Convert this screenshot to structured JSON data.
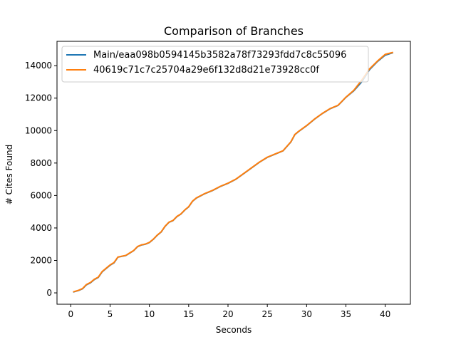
{
  "chart_data": {
    "type": "line",
    "title": "Comparison of Branches",
    "xlabel": "Seconds",
    "ylabel": "# Cites Found",
    "xlim": [
      -1.75,
      43.2
    ],
    "ylim": [
      -700,
      15500
    ],
    "xticks": [
      0,
      5,
      10,
      15,
      20,
      25,
      30,
      35,
      40
    ],
    "yticks": [
      0,
      2000,
      4000,
      6000,
      8000,
      10000,
      12000,
      14000
    ],
    "grid": false,
    "legend_position": "top-left",
    "series": [
      {
        "name": "Main/eaa098b0594145b3582a78f73293fdd7c8c55096",
        "color": "#1f77b4",
        "x": [
          0.3,
          1.0,
          1.5,
          2.0,
          2.5,
          3.0,
          3.5,
          4.0,
          4.5,
          5.0,
          5.5,
          6.0,
          6.5,
          7.0,
          7.5,
          8.0,
          8.5,
          9.0,
          9.5,
          10.0,
          10.5,
          11.0,
          11.5,
          12.0,
          12.5,
          13.0,
          13.5,
          14.0,
          14.5,
          15.0,
          15.5,
          16.0,
          17.0,
          18.0,
          19.0,
          20.0,
          21.0,
          22.0,
          23.0,
          24.0,
          25.0,
          26.0,
          27.0,
          28.0,
          28.5,
          29.0,
          30.0,
          31.0,
          32.0,
          33.0,
          34.0,
          34.5,
          35.0,
          36.0,
          37.0,
          38.0,
          39.0,
          40.0,
          41.0
        ],
        "y": [
          50,
          150,
          250,
          500,
          620,
          820,
          950,
          1300,
          1500,
          1700,
          1850,
          2200,
          2250,
          2300,
          2450,
          2600,
          2850,
          2950,
          3000,
          3100,
          3300,
          3550,
          3750,
          4100,
          4350,
          4450,
          4700,
          4850,
          5100,
          5300,
          5650,
          5850,
          6100,
          6300,
          6550,
          6750,
          7000,
          7350,
          7700,
          8050,
          8350,
          8550,
          8750,
          9300,
          9750,
          9950,
          10300,
          10700,
          11050,
          11350,
          11550,
          11800,
          12050,
          12450,
          13000,
          13750,
          14250,
          14650,
          14800
        ]
      },
      {
        "name": "40619c71c7c25704a29e6f132d8d21e73928cc0f",
        "color": "#ff7f0e",
        "x": [
          0.3,
          1.0,
          1.5,
          2.0,
          2.5,
          3.0,
          3.5,
          4.0,
          4.5,
          5.0,
          5.5,
          6.0,
          6.5,
          7.0,
          7.5,
          8.0,
          8.5,
          9.0,
          9.5,
          10.0,
          10.5,
          11.0,
          11.5,
          12.0,
          12.5,
          13.0,
          13.5,
          14.0,
          14.5,
          15.0,
          15.5,
          16.0,
          17.0,
          18.0,
          19.0,
          20.0,
          21.0,
          22.0,
          23.0,
          24.0,
          25.0,
          26.0,
          27.0,
          28.0,
          28.5,
          29.0,
          30.0,
          31.0,
          32.0,
          33.0,
          34.0,
          34.5,
          35.0,
          36.0,
          37.0,
          38.0,
          39.0,
          40.0,
          41.0
        ],
        "y": [
          60,
          160,
          270,
          520,
          640,
          840,
          970,
          1320,
          1520,
          1720,
          1870,
          2210,
          2260,
          2310,
          2460,
          2610,
          2860,
          2960,
          3010,
          3110,
          3310,
          3560,
          3760,
          4110,
          4360,
          4460,
          4710,
          4860,
          5110,
          5310,
          5660,
          5860,
          6110,
          6310,
          6560,
          6760,
          7010,
          7360,
          7710,
          8060,
          8360,
          8560,
          8760,
          9310,
          9760,
          9960,
          10310,
          10710,
          11060,
          11360,
          11560,
          11810,
          12060,
          12480,
          13100,
          13800,
          14280,
          14700,
          14820
        ]
      }
    ]
  }
}
